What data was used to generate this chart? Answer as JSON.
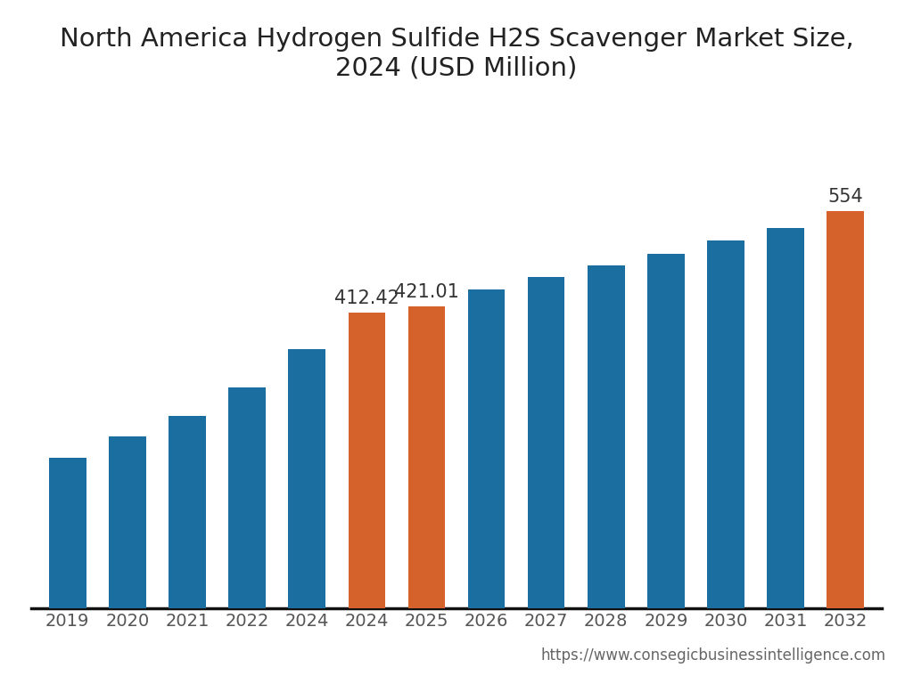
{
  "title": "North America Hydrogen Sulfide H2S Scavenger Market Size,\n2024 (USD Million)",
  "categories": [
    "2019",
    "2020",
    "2021",
    "2022",
    "2024",
    "2024",
    "2025",
    "2026",
    "2027",
    "2028",
    "2029",
    "2030",
    "2031",
    "2032"
  ],
  "values": [
    210,
    240,
    268,
    308,
    362,
    412.42,
    421.01,
    445,
    462,
    478,
    495,
    513,
    530,
    554
  ],
  "bar_colors": [
    "#1a6fa0",
    "#1a6fa0",
    "#1a6fa0",
    "#1a6fa0",
    "#1a6fa0",
    "#d4622a",
    "#d4622a",
    "#1a6fa0",
    "#1a6fa0",
    "#1a6fa0",
    "#1a6fa0",
    "#1a6fa0",
    "#1a6fa0",
    "#d4622a"
  ],
  "label_indices": [
    5,
    6,
    13
  ],
  "labels": [
    "412.42",
    "421.01",
    "554"
  ],
  "label_offsets": [
    8,
    8,
    8
  ],
  "background_color": "#ffffff",
  "title_fontsize": 21,
  "tick_fontsize": 14,
  "label_fontsize": 15,
  "url_text": "https://www.consegicbusinessintelligence.com",
  "url_fontsize": 12,
  "url_color": "#666666",
  "ylim_max": 700,
  "bar_width": 0.62
}
